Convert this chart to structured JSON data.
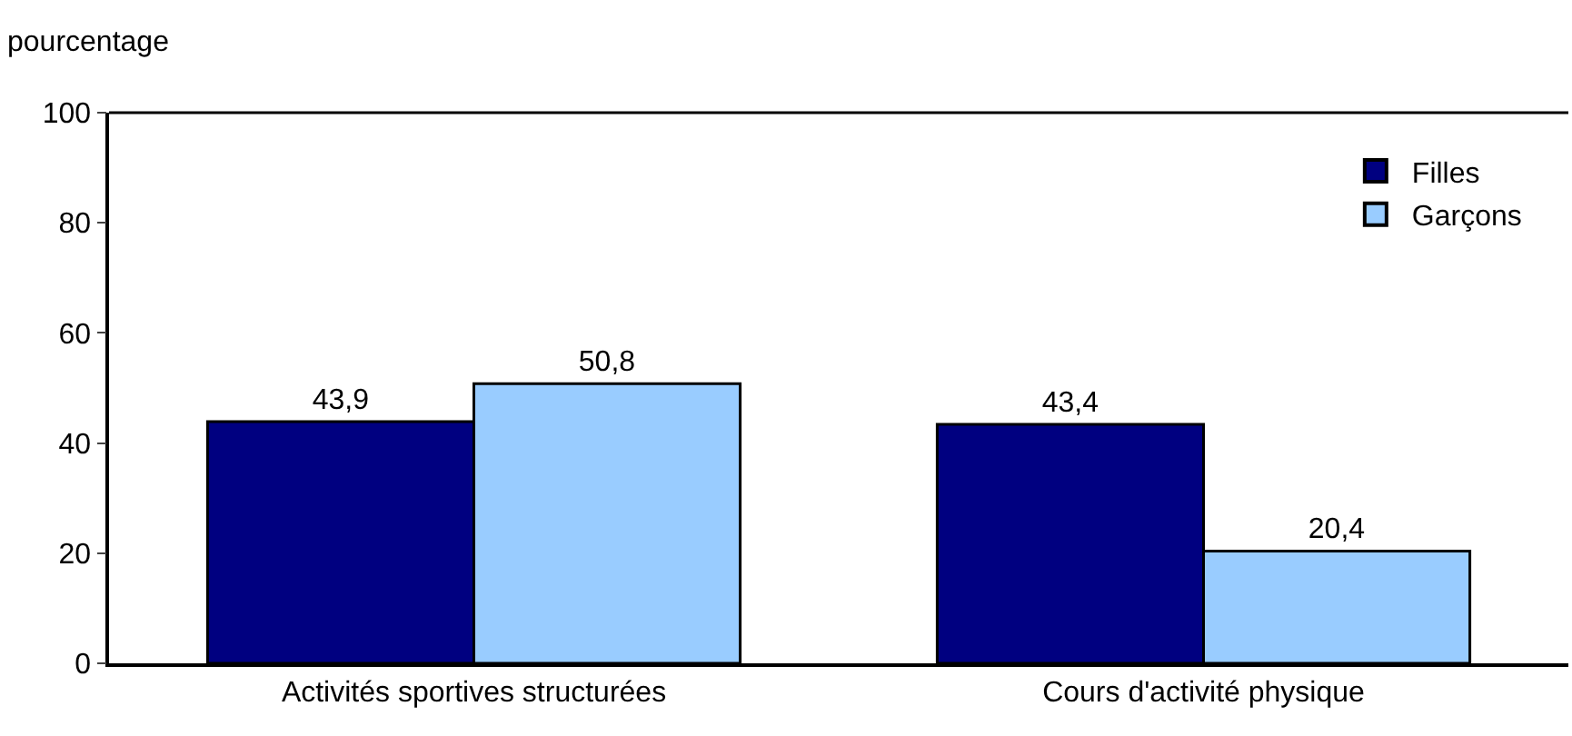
{
  "chart_data": {
    "type": "bar",
    "ylabel": "pourcentage",
    "categories": [
      "Activités sportives structurées",
      "Cours d'activité physique"
    ],
    "series": [
      {
        "name": "Filles",
        "color": "#000080",
        "values": [
          43.9,
          43.4
        ],
        "value_labels": [
          "43,9",
          "43,4"
        ]
      },
      {
        "name": "Garçons",
        "color": "#99ccff",
        "values": [
          50.8,
          20.4
        ],
        "value_labels": [
          "50,8",
          "20,4"
        ]
      }
    ],
    "ylim": [
      0,
      100
    ],
    "yticks": [
      0,
      20,
      40,
      60,
      80,
      100
    ],
    "legend": "top right"
  }
}
